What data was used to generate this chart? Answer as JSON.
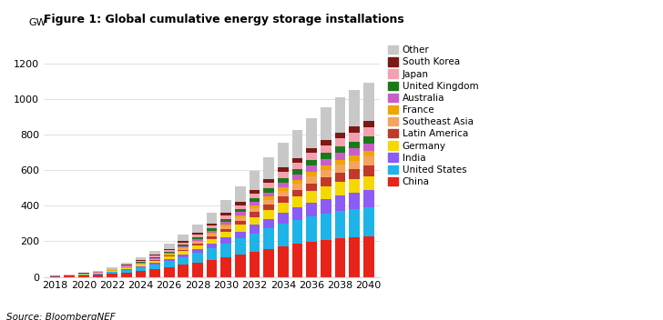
{
  "years": [
    2018,
    2019,
    2020,
    2021,
    2022,
    2023,
    2024,
    2025,
    2026,
    2027,
    2028,
    2029,
    2030,
    2031,
    2032,
    2033,
    2034,
    2035,
    2036,
    2037,
    2038,
    2039,
    2040
  ],
  "title": "Figure 1: Global cumulative energy storage installations",
  "ylabel": "GW",
  "source": "Source: BloombergNEF",
  "ylim": [
    0,
    1300
  ],
  "yticks": [
    0,
    200,
    400,
    600,
    800,
    1000,
    1200
  ],
  "xtick_years": [
    2018,
    2020,
    2022,
    2024,
    2026,
    2028,
    2030,
    2032,
    2034,
    2036,
    2038,
    2040
  ],
  "series": {
    "China": [
      5,
      6,
      9,
      13,
      18,
      25,
      34,
      44,
      55,
      67,
      80,
      94,
      110,
      126,
      143,
      158,
      173,
      186,
      198,
      208,
      216,
      222,
      228
    ],
    "United States": [
      2,
      3,
      4,
      6,
      9,
      14,
      20,
      27,
      35,
      44,
      54,
      65,
      77,
      89,
      102,
      113,
      124,
      133,
      141,
      148,
      154,
      158,
      162
    ],
    "India": [
      0,
      0,
      1,
      1,
      2,
      4,
      6,
      9,
      12,
      16,
      21,
      27,
      33,
      40,
      48,
      55,
      63,
      70,
      77,
      83,
      88,
      92,
      96
    ],
    "Germany": [
      1,
      1,
      2,
      3,
      4,
      6,
      8,
      11,
      14,
      18,
      22,
      27,
      32,
      38,
      44,
      50,
      56,
      61,
      66,
      71,
      75,
      78,
      81
    ],
    "Latin America": [
      0,
      0,
      0,
      1,
      1,
      2,
      3,
      4,
      6,
      8,
      11,
      14,
      17,
      21,
      26,
      30,
      35,
      39,
      44,
      48,
      51,
      54,
      57
    ],
    "Southeast Asia": [
      0,
      0,
      0,
      1,
      1,
      2,
      3,
      4,
      5,
      7,
      10,
      12,
      15,
      19,
      23,
      27,
      31,
      35,
      39,
      43,
      46,
      49,
      52
    ],
    "France": [
      0,
      0,
      0,
      0,
      1,
      1,
      2,
      3,
      4,
      5,
      6,
      8,
      10,
      12,
      15,
      17,
      20,
      22,
      25,
      27,
      29,
      31,
      32
    ],
    "Australia": [
      0,
      0,
      1,
      1,
      2,
      3,
      4,
      5,
      6,
      8,
      10,
      13,
      15,
      18,
      22,
      25,
      28,
      31,
      34,
      36,
      38,
      40,
      42
    ],
    "United Kingdom": [
      0,
      0,
      1,
      1,
      2,
      3,
      4,
      5,
      6,
      8,
      10,
      12,
      15,
      17,
      20,
      23,
      26,
      28,
      31,
      33,
      35,
      36,
      38
    ],
    "Japan": [
      1,
      1,
      2,
      2,
      3,
      4,
      6,
      7,
      9,
      11,
      14,
      17,
      20,
      23,
      27,
      30,
      33,
      37,
      40,
      43,
      46,
      48,
      50
    ],
    "South Korea": [
      0,
      0,
      1,
      1,
      2,
      3,
      4,
      5,
      6,
      8,
      10,
      12,
      14,
      17,
      19,
      22,
      25,
      27,
      29,
      31,
      33,
      35,
      36
    ],
    "Other": [
      1,
      2,
      3,
      4,
      7,
      10,
      14,
      20,
      27,
      36,
      47,
      59,
      73,
      89,
      105,
      121,
      138,
      154,
      169,
      183,
      196,
      207,
      218
    ]
  },
  "colors": {
    "China": "#e8231a",
    "United States": "#1eb4e8",
    "India": "#8b5cf6",
    "Germany": "#f5d800",
    "Latin America": "#c0392b",
    "Southeast Asia": "#f4a460",
    "France": "#f0a500",
    "Australia": "#c85fc8",
    "United Kingdom": "#1a7a1a",
    "Japan": "#f5a0b0",
    "South Korea": "#7b1a14",
    "Other": "#c8c8c8"
  },
  "stack_order": [
    "China",
    "United States",
    "India",
    "Germany",
    "Latin America",
    "Southeast Asia",
    "France",
    "Australia",
    "United Kingdom",
    "Japan",
    "South Korea",
    "Other"
  ],
  "legend_order": [
    "Other",
    "South Korea",
    "Japan",
    "United Kingdom",
    "Australia",
    "France",
    "Southeast Asia",
    "Latin America",
    "Germany",
    "India",
    "United States",
    "China"
  ]
}
